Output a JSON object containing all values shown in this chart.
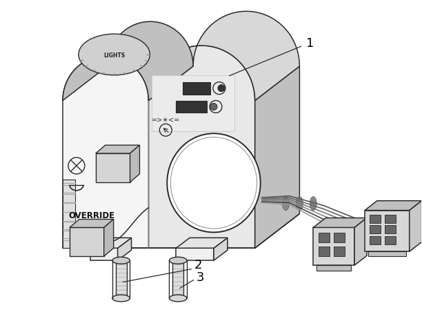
{
  "background_color": "#ffffff",
  "line_color": "#2a2a2a",
  "fill_front": "#f5f5f5",
  "fill_right": "#e8e8e8",
  "fill_top": "#d8d8d8",
  "fill_dark": "#c0c0c0",
  "figsize": [
    6.12,
    4.75
  ],
  "dpi": 100
}
